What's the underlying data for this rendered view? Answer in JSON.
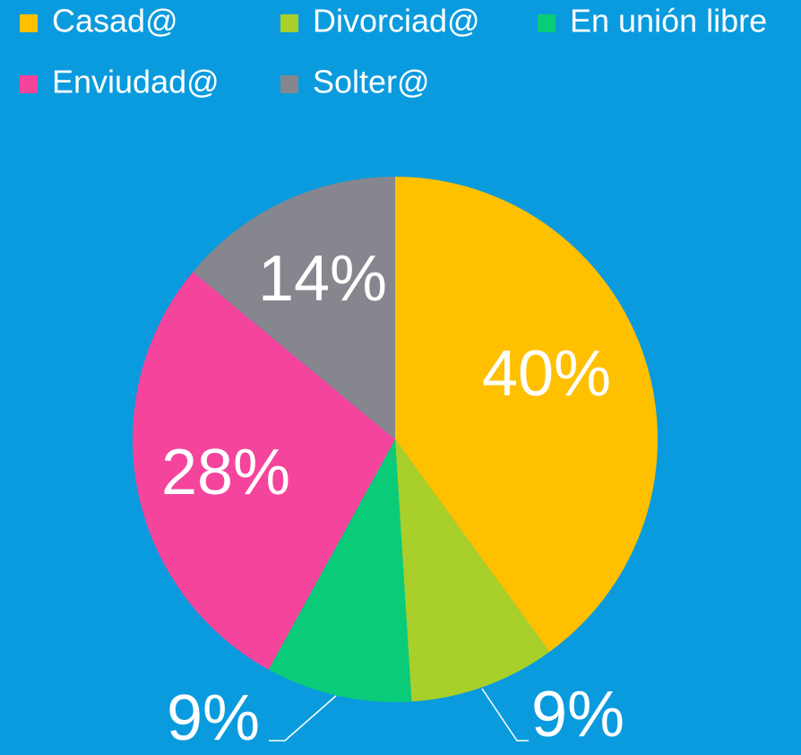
{
  "chart_data": {
    "type": "pie",
    "categories": [
      "Casad@",
      "Divorciad@",
      "En unión libre",
      "Enviudad@",
      "Solter@"
    ],
    "values": [
      40,
      9,
      9,
      28,
      14
    ],
    "value_labels": [
      "40%",
      "9%",
      "9%",
      "28%",
      "14%"
    ],
    "colors": [
      "#FFC000",
      "#A9D02A",
      "#0ACB78",
      "#F4449C",
      "#86868E"
    ],
    "legend": "top"
  }
}
